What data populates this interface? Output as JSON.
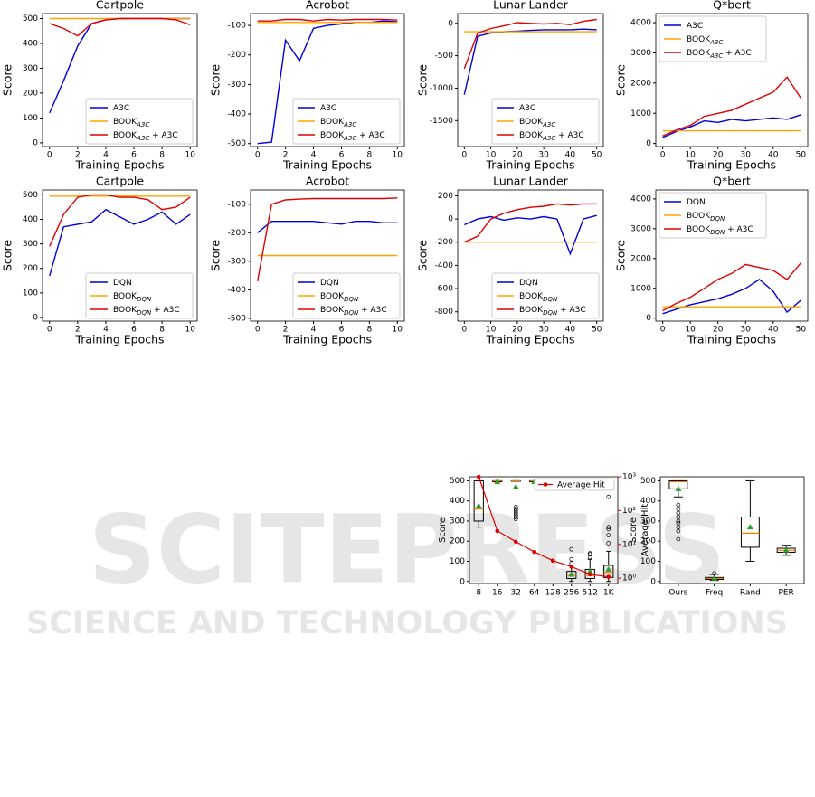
{
  "chart_data": [
    {
      "type": "line",
      "title": "Cartpole",
      "xlabel": "Training Epochs",
      "ylabel": "Score",
      "legend": "lower right",
      "x": [
        0,
        1,
        2,
        3,
        4,
        5,
        6,
        7,
        8,
        9,
        10
      ],
      "xlim": [
        -0.5,
        10.5
      ],
      "xticks": [
        0,
        2,
        4,
        6,
        8,
        10
      ],
      "ylim": [
        -15,
        520
      ],
      "yticks": [
        0,
        100,
        200,
        300,
        400,
        500
      ],
      "series": [
        {
          "name": "A3C",
          "color": "#0000e0",
          "values": [
            120,
            250,
            390,
            480,
            495,
            500,
            500,
            500,
            500,
            500,
            500
          ]
        },
        {
          "name": "BOOK",
          "name_sub": "A3C",
          "color": "#ffa500",
          "values": [
            500,
            500,
            500,
            500,
            500,
            500,
            500,
            500,
            500,
            500,
            500
          ]
        },
        {
          "name": "BOOK",
          "name_sub": "A3C",
          "name_suffix": " + A3C",
          "color": "#e00000",
          "values": [
            480,
            460,
            430,
            480,
            495,
            500,
            500,
            500,
            500,
            495,
            475
          ]
        }
      ]
    },
    {
      "type": "line",
      "title": "Acrobot",
      "xlabel": "Training Epochs",
      "ylabel": "Score",
      "legend": "lower right",
      "x": [
        0,
        1,
        2,
        3,
        4,
        5,
        6,
        7,
        8,
        9,
        10
      ],
      "xlim": [
        -0.5,
        10.5
      ],
      "xticks": [
        0,
        2,
        4,
        6,
        8,
        10
      ],
      "ylim": [
        -510,
        -60
      ],
      "yticks": [
        -500,
        -400,
        -300,
        -200,
        -100
      ],
      "series": [
        {
          "name": "A3C",
          "color": "#0000e0",
          "values": [
            -500,
            -495,
            -150,
            -220,
            -110,
            -100,
            -95,
            -90,
            -90,
            -85,
            -88
          ]
        },
        {
          "name": "BOOK",
          "name_sub": "A3C",
          "color": "#ffa500",
          "values": [
            -90,
            -90,
            -90,
            -90,
            -90,
            -90,
            -90,
            -90,
            -90,
            -90,
            -90
          ]
        },
        {
          "name": "BOOK",
          "name_sub": "A3C",
          "name_suffix": " + A3C",
          "color": "#e00000",
          "values": [
            -85,
            -85,
            -80,
            -80,
            -85,
            -80,
            -82,
            -80,
            -80,
            -80,
            -82
          ]
        }
      ]
    },
    {
      "type": "line",
      "title": "Lunar Lander",
      "xlabel": "Training Epochs",
      "ylabel": "Score",
      "legend": "lower right",
      "x": [
        0,
        5,
        10,
        15,
        20,
        25,
        30,
        35,
        40,
        45,
        50
      ],
      "xlim": [
        -2.5,
        52.5
      ],
      "xticks": [
        0,
        10,
        20,
        30,
        40,
        50
      ],
      "ylim": [
        -1900,
        150
      ],
      "yticks": [
        -1500,
        -1000,
        -500,
        0
      ],
      "series": [
        {
          "name": "A3C",
          "color": "#0000e0",
          "values": [
            -1100,
            -200,
            -150,
            -130,
            -120,
            -110,
            -100,
            -100,
            -100,
            -90,
            -100
          ]
        },
        {
          "name": "BOOK",
          "name_sub": "A3C",
          "color": "#ffa500",
          "values": [
            -130,
            -130,
            -130,
            -130,
            -130,
            -130,
            -130,
            -130,
            -130,
            -130,
            -130
          ]
        },
        {
          "name": "BOOK",
          "name_sub": "A3C",
          "name_suffix": " + A3C",
          "color": "#e00000",
          "values": [
            -700,
            -150,
            -80,
            -40,
            10,
            0,
            -10,
            0,
            -20,
            30,
            60
          ]
        }
      ]
    },
    {
      "type": "line",
      "title": "Q*bert",
      "xlabel": "Training Epochs",
      "ylabel": "Score",
      "legend": "upper left",
      "x": [
        0,
        5,
        10,
        15,
        20,
        25,
        30,
        35,
        40,
        45,
        50
      ],
      "xlim": [
        -2.5,
        52.5
      ],
      "xticks": [
        0,
        10,
        20,
        30,
        40,
        50
      ],
      "ylim": [
        -100,
        4300
      ],
      "yticks": [
        0,
        1000,
        2000,
        3000,
        4000
      ],
      "series": [
        {
          "name": "A3C",
          "color": "#0000e0",
          "values": [
            200,
            400,
            550,
            750,
            700,
            800,
            750,
            800,
            850,
            800,
            950
          ]
        },
        {
          "name": "BOOK",
          "name_sub": "A3C",
          "color": "#ffa500",
          "values": [
            420,
            420,
            420,
            420,
            420,
            420,
            420,
            420,
            420,
            420,
            420
          ]
        },
        {
          "name": "BOOK",
          "name_sub": "A3C",
          "name_suffix": " + A3C",
          "color": "#e00000",
          "values": [
            250,
            450,
            600,
            900,
            1000,
            1100,
            1300,
            1500,
            1700,
            2200,
            1500
          ]
        }
      ]
    },
    {
      "type": "line",
      "title": "Cartpole",
      "xlabel": "Training Epochs",
      "ylabel": "Score",
      "legend": "lower right",
      "x": [
        0,
        1,
        2,
        3,
        4,
        5,
        6,
        7,
        8,
        9,
        10
      ],
      "xlim": [
        -0.5,
        10.5
      ],
      "xticks": [
        0,
        2,
        4,
        6,
        8,
        10
      ],
      "ylim": [
        -15,
        520
      ],
      "yticks": [
        0,
        100,
        200,
        300,
        400,
        500
      ],
      "series": [
        {
          "name": "DQN",
          "color": "#0000e0",
          "values": [
            170,
            370,
            380,
            390,
            440,
            410,
            380,
            400,
            430,
            380,
            420
          ]
        },
        {
          "name": "BOOK",
          "name_sub": "DQN",
          "color": "#ffa500",
          "values": [
            495,
            495,
            495,
            495,
            495,
            495,
            495,
            495,
            495,
            495,
            495
          ]
        },
        {
          "name": "BOOK",
          "name_sub": "DQN",
          "name_suffix": " + A3C",
          "color": "#e00000",
          "values": [
            290,
            420,
            490,
            500,
            500,
            490,
            490,
            480,
            440,
            450,
            490
          ]
        }
      ]
    },
    {
      "type": "line",
      "title": "Acrobot",
      "xlabel": "Training Epochs",
      "ylabel": "Score",
      "legend": "lower right",
      "x": [
        0,
        1,
        2,
        3,
        4,
        5,
        6,
        7,
        8,
        9,
        10
      ],
      "xlim": [
        -0.5,
        10.5
      ],
      "xticks": [
        0,
        2,
        4,
        6,
        8,
        10
      ],
      "ylim": [
        -510,
        -50
      ],
      "yticks": [
        -500,
        -400,
        -300,
        -200,
        -100
      ],
      "series": [
        {
          "name": "DQN",
          "color": "#0000e0",
          "values": [
            -200,
            -160,
            -160,
            -160,
            -160,
            -165,
            -170,
            -160,
            -160,
            -165,
            -165
          ]
        },
        {
          "name": "BOOK",
          "name_sub": "DQN",
          "color": "#ffa500",
          "values": [
            -280,
            -280,
            -280,
            -280,
            -280,
            -280,
            -280,
            -280,
            -280,
            -280,
            -280
          ]
        },
        {
          "name": "BOOK",
          "name_sub": "DQN",
          "name_suffix": " + A3C",
          "color": "#e00000",
          "values": [
            -370,
            -100,
            -85,
            -82,
            -80,
            -80,
            -80,
            -80,
            -80,
            -80,
            -78
          ]
        }
      ]
    },
    {
      "type": "line",
      "title": "Lunar Lander",
      "xlabel": "Training Epochs",
      "ylabel": "Score",
      "legend": "lower right",
      "x": [
        0,
        5,
        10,
        15,
        20,
        25,
        30,
        35,
        40,
        45,
        50
      ],
      "xlim": [
        -2.5,
        52.5
      ],
      "xticks": [
        0,
        10,
        20,
        30,
        40,
        50
      ],
      "ylim": [
        -880,
        250
      ],
      "yticks": [
        -800,
        -600,
        -400,
        -200,
        0,
        200
      ],
      "series": [
        {
          "name": "DQN",
          "color": "#0000e0",
          "values": [
            -50,
            0,
            20,
            -10,
            10,
            0,
            20,
            0,
            -300,
            0,
            30
          ]
        },
        {
          "name": "BOOK",
          "name_sub": "DQN",
          "color": "#ffa500",
          "values": [
            -200,
            -200,
            -200,
            -200,
            -200,
            -200,
            -200,
            -200,
            -200,
            -200,
            -200
          ]
        },
        {
          "name": "BOOK",
          "name_sub": "DQN",
          "name_suffix": " + A3C",
          "color": "#e00000",
          "values": [
            -200,
            -150,
            0,
            50,
            80,
            100,
            110,
            130,
            120,
            130,
            130
          ]
        }
      ]
    },
    {
      "type": "line",
      "title": "Q*bert",
      "xlabel": "Training Epochs",
      "ylabel": "Score",
      "legend": "upper left",
      "x": [
        0,
        5,
        10,
        15,
        20,
        25,
        30,
        35,
        40,
        45,
        50
      ],
      "xlim": [
        -2.5,
        52.5
      ],
      "xticks": [
        0,
        10,
        20,
        30,
        40,
        50
      ],
      "ylim": [
        -100,
        4300
      ],
      "yticks": [
        0,
        1000,
        2000,
        3000,
        4000
      ],
      "series": [
        {
          "name": "DQN",
          "color": "#0000e0",
          "values": [
            150,
            300,
            450,
            550,
            650,
            800,
            1000,
            1300,
            900,
            200,
            600
          ]
        },
        {
          "name": "BOOK",
          "name_sub": "DQN",
          "color": "#ffa500",
          "values": [
            380,
            380,
            380,
            380,
            380,
            380,
            380,
            380,
            380,
            380,
            380
          ]
        },
        {
          "name": "BOOK",
          "name_sub": "DQN",
          "name_suffix": " + A3C",
          "color": "#e00000",
          "values": [
            250,
            500,
            700,
            1000,
            1300,
            1500,
            1800,
            1700,
            1600,
            1300,
            1850
          ]
        }
      ]
    },
    {
      "type": "box",
      "ylabel": "Score",
      "y2label": "Average Hit",
      "y2color": "#e00000",
      "legend": "upper right",
      "categories": [
        "8",
        "16",
        "32",
        "64",
        "128",
        "256",
        "512",
        "1K"
      ],
      "ylim": [
        -10,
        520
      ],
      "yticks": [
        0,
        100,
        200,
        300,
        400,
        500
      ],
      "y2lim": [
        0.7,
        1000
      ],
      "y2log": true,
      "y2ticks": [
        {
          "value": 1,
          "label": "10⁰"
        },
        {
          "value": 10,
          "label": "10¹"
        },
        {
          "value": 100,
          "label": "10²"
        },
        {
          "value": 1000,
          "label": "10³"
        }
      ],
      "boxes": [
        {
          "min": 270,
          "q1": 300,
          "median": 360,
          "q3": 500,
          "max": 500,
          "mean": 375,
          "outliers": []
        },
        {
          "min": 495,
          "q1": 495,
          "median": 500,
          "q3": 500,
          "max": 500,
          "mean": 495,
          "outliers": []
        },
        {
          "min": 500,
          "q1": 500,
          "median": 500,
          "q3": 500,
          "max": 500,
          "mean": 470,
          "outliers": [
            310,
            320,
            330,
            340,
            350,
            360,
            370
          ]
        },
        {
          "min": 495,
          "q1": 495,
          "median": 500,
          "q3": 500,
          "max": 500,
          "mean": 495,
          "outliers": []
        },
        {
          "min": 500,
          "q1": 500,
          "median": 500,
          "q3": 500,
          "max": 500,
          "mean": 500,
          "outliers": []
        },
        {
          "min": 0,
          "q1": 15,
          "median": 30,
          "q3": 50,
          "max": 80,
          "mean": 35,
          "outliers": [
            90,
            110,
            160
          ]
        },
        {
          "min": 0,
          "q1": 15,
          "median": 30,
          "q3": 60,
          "max": 110,
          "mean": 50,
          "outliers": [
            120,
            135,
            140
          ]
        },
        {
          "min": 0,
          "q1": 20,
          "median": 45,
          "q3": 80,
          "max": 150,
          "mean": 60,
          "outliers": [
            190,
            230,
            260,
            270,
            420
          ]
        }
      ],
      "series": [
        {
          "name": "Average Hit",
          "color": "#e00000",
          "axis": "y2",
          "values": [
            1000,
            25,
            12,
            6,
            3.3,
            2.2,
            1.3,
            1.1
          ]
        }
      ]
    },
    {
      "type": "box",
      "ylabel": "Score",
      "categories": [
        "Ours",
        "Freq",
        "Rand",
        "PER"
      ],
      "ylim": [
        -10,
        520
      ],
      "yticks": [
        0,
        100,
        200,
        300,
        400,
        500
      ],
      "boxes": [
        {
          "min": 420,
          "q1": 460,
          "median": 495,
          "q3": 500,
          "max": 500,
          "mean": 460,
          "outliers": [
            210,
            250,
            270,
            290,
            300,
            320,
            340,
            360,
            380
          ]
        },
        {
          "min": 5,
          "q1": 10,
          "median": 15,
          "q3": 20,
          "max": 35,
          "mean": 15,
          "outliers": [
            40
          ]
        },
        {
          "min": 100,
          "q1": 170,
          "median": 240,
          "q3": 320,
          "max": 500,
          "mean": 270,
          "outliers": []
        },
        {
          "min": 130,
          "q1": 145,
          "median": 155,
          "q3": 165,
          "max": 180,
          "mean": 155,
          "outliers": []
        }
      ]
    }
  ],
  "watermark": {
    "line1": "SCITEPRESS",
    "line2": "SCIENCE AND TECHNOLOGY PUBLICATIONS"
  }
}
